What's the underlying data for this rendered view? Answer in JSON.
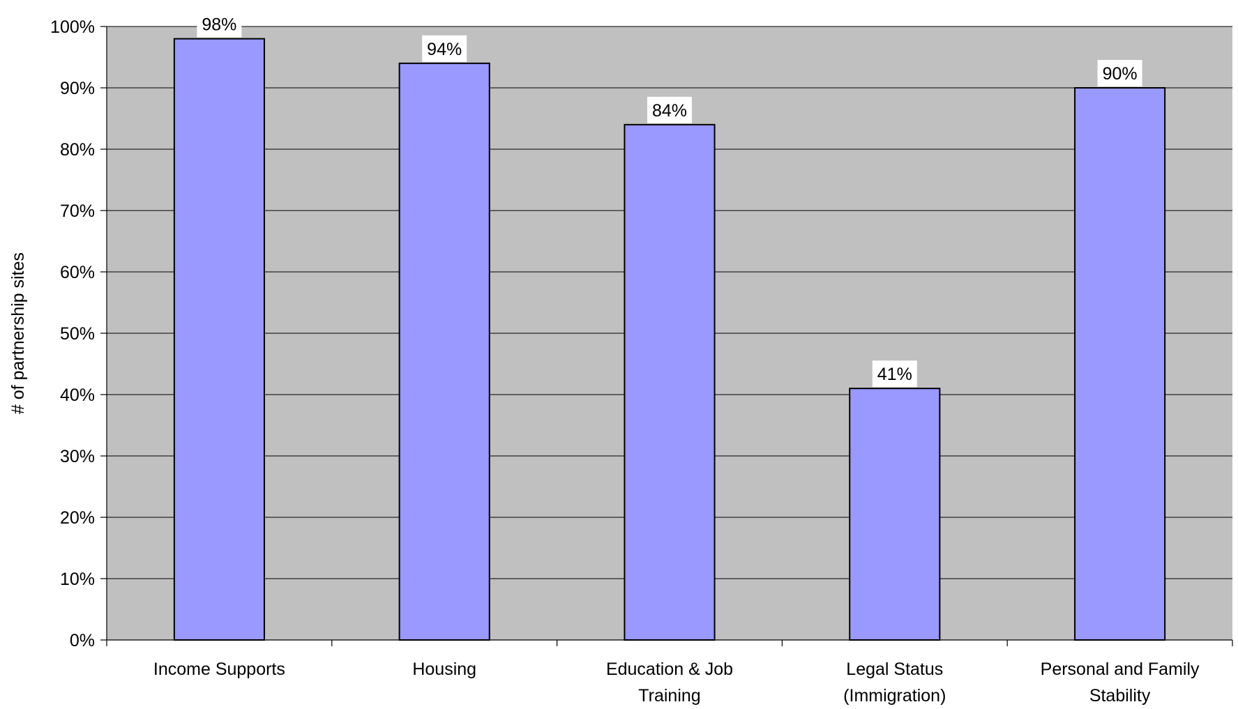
{
  "chart_data": {
    "type": "bar",
    "title": "",
    "xlabel": "",
    "ylabel": "# of partnership sites",
    "categories": [
      [
        "Income Supports"
      ],
      [
        "Housing"
      ],
      [
        "Education & Job",
        "Training"
      ],
      [
        "Legal Status",
        "(Immigration)"
      ],
      [
        "Personal and Family",
        "Stability"
      ]
    ],
    "values": [
      98,
      94,
      84,
      41,
      90
    ],
    "data_labels": [
      "98%",
      "94%",
      "84%",
      "41%",
      "90%"
    ],
    "ylim": [
      0,
      100
    ],
    "yticks": [
      "0%",
      "10%",
      "20%",
      "30%",
      "40%",
      "50%",
      "60%",
      "70%",
      "80%",
      "90%",
      "100%"
    ],
    "grid": true,
    "legend": "none",
    "colors": {
      "bar_fill": "#9999ff",
      "bar_stroke": "#000000",
      "plot_background": "#c0c0c0",
      "gridline": "#000000",
      "label_background": "#ffffff"
    }
  }
}
